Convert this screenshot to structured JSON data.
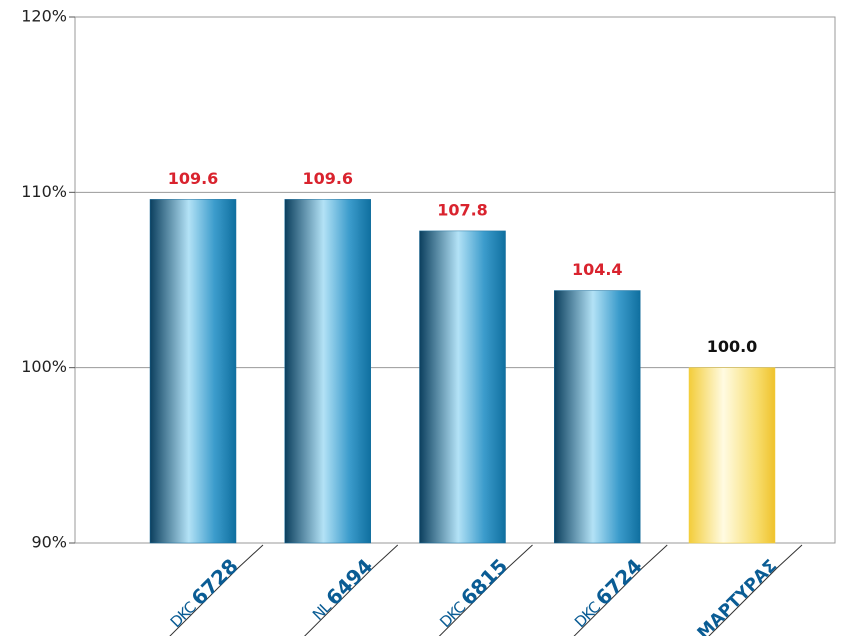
{
  "chart_data": {
    "type": "bar",
    "categories": [
      "DKC 6728",
      "NL 6494",
      "DKC 6815",
      "DKC 6724",
      "ΜΑΡΤΥΡΑΣ"
    ],
    "values": [
      109.6,
      109.6,
      107.8,
      104.4,
      100.0
    ],
    "value_labels": [
      "109.6",
      "109.6",
      "107.8",
      "104.4",
      "100.0"
    ],
    "colors": [
      "#1a6f9e",
      "#1a6f9e",
      "#1a6f9e",
      "#1a6f9e",
      "#f4cf3a"
    ],
    "label_colors": [
      "#d9232e",
      "#d9232e",
      "#d9232e",
      "#d9232e",
      "#111111"
    ],
    "ylim": [
      90,
      120
    ],
    "yticks": [
      {
        "value": 90,
        "label": "90%"
      },
      {
        "value": 100,
        "label": "100%"
      },
      {
        "value": 110,
        "label": "110%"
      },
      {
        "value": 120,
        "label": "120%"
      }
    ],
    "grid": true
  }
}
